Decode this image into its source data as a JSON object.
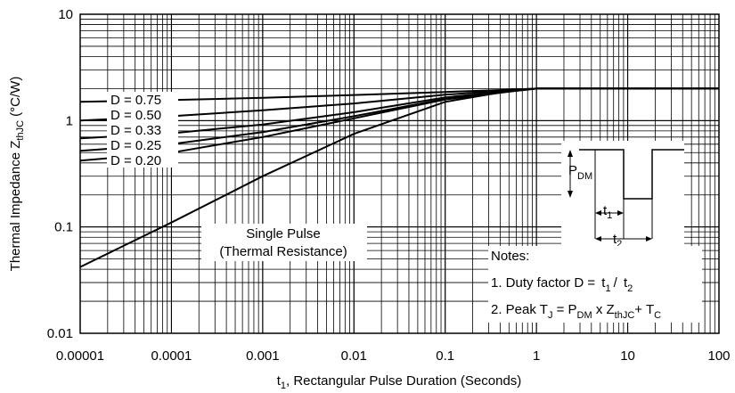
{
  "chart_data": {
    "type": "line",
    "title": "",
    "xlabel": "t",
    "xlabel_sub": "1",
    "xlabel_rest": ", Rectangular Pulse Duration (Seconds)",
    "ylabel": "Thermal Impedance Z",
    "ylabel_sub": "thJC",
    "ylabel_rest": " (°C/W)",
    "xscale": "log",
    "yscale": "log",
    "xlim": [
      1e-05,
      100
    ],
    "ylim": [
      0.01,
      10
    ],
    "grid": true,
    "xticks": [
      "0.00001",
      "0.0001",
      "0.001",
      "0.01",
      "0.1",
      "1",
      "10",
      "100"
    ],
    "yticks": [
      "0.01",
      "0.1",
      "1",
      "10"
    ],
    "series": [
      {
        "name": "D = 0.75",
        "x": [
          1e-05,
          0.0001,
          0.001,
          0.01,
          0.1,
          0.5,
          1,
          2,
          10,
          100
        ],
        "y": [
          1.5,
          1.56,
          1.64,
          1.74,
          1.86,
          1.95,
          2.0,
          2.0,
          2.0,
          2.0
        ]
      },
      {
        "name": "D = 0.50",
        "x": [
          1e-05,
          0.0001,
          0.001,
          0.01,
          0.1,
          0.5,
          1,
          2,
          10,
          100
        ],
        "y": [
          1.0,
          1.1,
          1.25,
          1.45,
          1.75,
          1.93,
          2.0,
          2.0,
          2.0,
          2.0
        ]
      },
      {
        "name": "D = 0.33",
        "x": [
          1e-05,
          0.0001,
          0.001,
          0.01,
          0.1,
          0.5,
          1,
          2,
          10,
          100
        ],
        "y": [
          0.68,
          0.76,
          0.92,
          1.2,
          1.65,
          1.9,
          2.0,
          2.0,
          2.0,
          2.0
        ]
      },
      {
        "name": "D = 0.25",
        "x": [
          1e-05,
          0.0001,
          0.001,
          0.01,
          0.1,
          0.5,
          1,
          2,
          10,
          100
        ],
        "y": [
          0.52,
          0.6,
          0.78,
          1.1,
          1.6,
          1.88,
          2.0,
          2.0,
          2.0,
          2.0
        ]
      },
      {
        "name": "D = 0.20",
        "x": [
          1e-05,
          0.0001,
          0.001,
          0.01,
          0.1,
          0.5,
          1,
          2,
          10,
          100
        ],
        "y": [
          0.42,
          0.5,
          0.7,
          1.05,
          1.58,
          1.87,
          2.0,
          2.0,
          2.0,
          2.0
        ]
      },
      {
        "name": "Single Pulse (Thermal Resistance)",
        "x": [
          1e-05,
          0.0001,
          0.001,
          0.01,
          0.1,
          0.5,
          1,
          2,
          10,
          100
        ],
        "y": [
          0.042,
          0.11,
          0.3,
          0.75,
          1.5,
          1.9,
          2.0,
          2.0,
          2.0,
          2.0
        ]
      }
    ],
    "labels": {
      "d075": "D = 0.75",
      "d050": "D = 0.50",
      "d033": "D = 0.33",
      "d025": "D = 0.25",
      "d020": "D = 0.20",
      "single_line1": "Single Pulse",
      "single_line2": "(Thermal Resistance)"
    },
    "inset": {
      "pdm": "P",
      "pdm_sub": "DM",
      "t1": "t",
      "t1_sub": "1",
      "t2": "t",
      "t2_sub": "2"
    },
    "notes": {
      "title": "Notes:",
      "n1_a": "1. Duty factor D = ",
      "n1_t1": "t",
      "n1_t1_sub": "1",
      "n1_slash": "/ ",
      "n1_t2": "t",
      "n1_t2_sub": "2",
      "n2_a": "2. Peak T",
      "n2_a_sub": "J",
      "n2_b": " = P",
      "n2_b_sub": "DM",
      "n2_c": " x Z",
      "n2_c_sub": "thJC",
      "n2_d": "+ T",
      "n2_d_sub": "C"
    }
  }
}
